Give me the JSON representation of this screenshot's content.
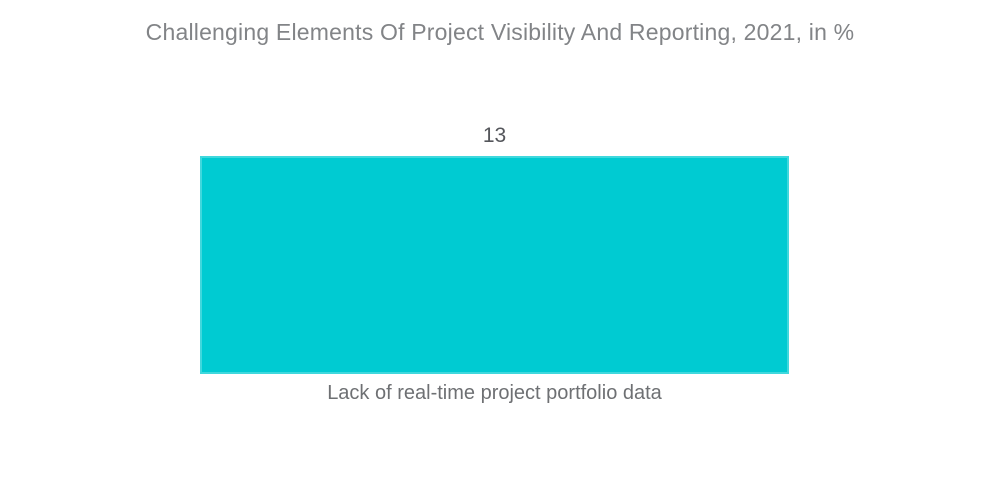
{
  "page": {
    "background_color": "#ffffff"
  },
  "chart_data": {
    "type": "bar",
    "title": "Challenging Elements Of Project Visibility And Reporting, 2021, in %",
    "categories": [
      "Lack of real-time project portfolio data"
    ],
    "values": [
      13
    ],
    "value_labels": [
      "13"
    ],
    "xlabel": "",
    "ylabel": "",
    "ylim": [
      0,
      13
    ],
    "grid": false,
    "legend": "none",
    "orientation": "vertical",
    "axes_visible": false,
    "colors": {
      "bar": "#00cbd2",
      "title_text": "#828487",
      "value_label_text": "#54565b",
      "category_label_text": "#6e7073"
    }
  }
}
